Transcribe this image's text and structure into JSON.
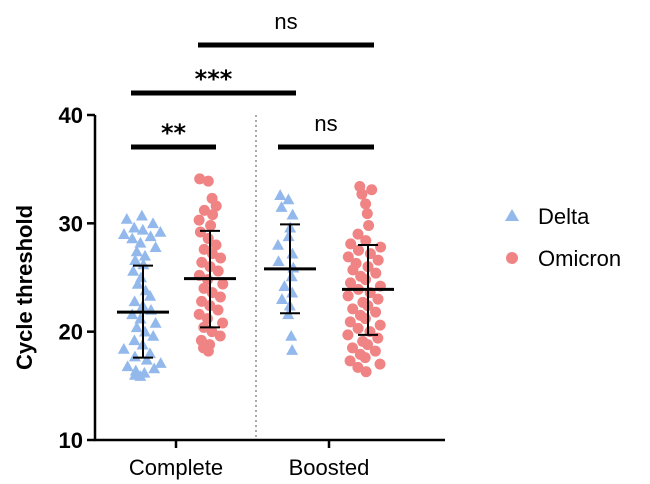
{
  "chart_data": {
    "type": "scatter",
    "ylabel": "Cycle threshold",
    "ylim": [
      10,
      40
    ],
    "yticks": [
      "10",
      "20",
      "30",
      "40"
    ],
    "categories": [
      "Complete",
      "Boosted"
    ],
    "colors": {
      "Delta": "#93b9ec",
      "Omicron": "#f08383"
    },
    "series": [
      {
        "name": "Delta",
        "marker": "triangle",
        "groups": [
          {
            "category": "Complete",
            "mean": 21.8,
            "sd_low": 17.6,
            "sd_high": 26.1,
            "values": [
              30.7,
              30.4,
              30.0,
              29.6,
              29.4,
              29.2,
              29.0,
              28.8,
              28.6,
              28.2,
              27.8,
              27.4,
              27.0,
              26.6,
              26.2,
              25.6,
              25.0,
              24.4,
              23.8,
              23.3,
              22.8,
              22.4,
              22.0,
              21.6,
              21.2,
              20.8,
              20.4,
              20.0,
              19.6,
              19.2,
              18.8,
              18.4,
              18.0,
              17.7,
              17.4,
              17.1,
              16.8,
              16.6,
              16.4,
              16.2,
              16.0,
              15.9
            ]
          },
          {
            "category": "Boosted",
            "mean": 25.8,
            "sd_low": 21.7,
            "sd_high": 29.9,
            "values": [
              32.6,
              32.2,
              31.5,
              30.8,
              29.6,
              28.8,
              28.0,
              27.2,
              26.5,
              25.9,
              25.1,
              24.2,
              23.6,
              23.0,
              22.4,
              21.6,
              19.6,
              18.3
            ]
          }
        ]
      },
      {
        "name": "Omicron",
        "marker": "circle",
        "groups": [
          {
            "category": "Complete",
            "mean": 24.9,
            "sd_low": 20.4,
            "sd_high": 29.3,
            "values": [
              34.1,
              33.9,
              32.3,
              31.6,
              31.2,
              30.8,
              30.3,
              29.8,
              29.2,
              28.6,
              28.0,
              27.6,
              27.2,
              26.8,
              26.4,
              26.0,
              25.6,
              25.2,
              24.8,
              24.4,
              24.0,
              23.6,
              23.2,
              22.8,
              22.4,
              22.0,
              21.6,
              21.2,
              20.8,
              20.4,
              20.0,
              19.6,
              19.2,
              18.8,
              18.5,
              18.2
            ]
          },
          {
            "category": "Boosted",
            "mean": 23.9,
            "sd_low": 19.7,
            "sd_high": 28.0,
            "values": [
              33.4,
              33.1,
              32.7,
              31.8,
              30.9,
              29.8,
              29.0,
              28.4,
              28.1,
              27.8,
              27.5,
              27.2,
              26.9,
              26.6,
              26.3,
              26.0,
              25.7,
              25.4,
              25.1,
              24.8,
              24.5,
              24.2,
              23.9,
              23.6,
              23.3,
              23.0,
              22.7,
              22.4,
              22.1,
              21.8,
              21.5,
              21.2,
              20.9,
              20.6,
              20.3,
              20.0,
              19.7,
              19.4,
              19.1,
              18.8,
              18.5,
              18.2,
              17.9,
              17.6,
              17.3,
              17.0,
              16.7,
              16.3
            ]
          }
        ]
      }
    ],
    "significance": [
      {
        "label": "**",
        "from": "Complete-Delta",
        "to": "Complete-Omicron"
      },
      {
        "label": "ns",
        "from": "Boosted-Delta",
        "to": "Boosted-Omicron"
      },
      {
        "label": "***",
        "from": "Complete-Delta",
        "to": "Boosted-Delta"
      },
      {
        "label": "ns",
        "from": "Complete-Omicron",
        "to": "Boosted-Omicron"
      }
    ],
    "legend": {
      "position": "right",
      "entries": [
        "Delta",
        "Omicron"
      ]
    }
  }
}
